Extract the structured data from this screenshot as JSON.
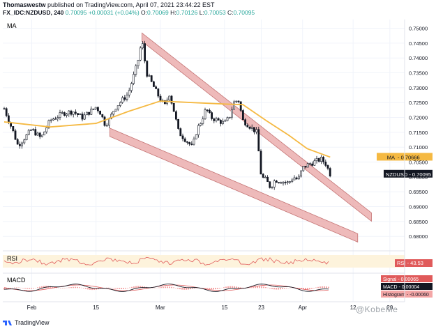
{
  "header": {
    "author": "Thomaswestw",
    "published": "published on TradingView.com, April 07, 2021 23:44:22 EST",
    "symbol": "FX_IDC:NZDUSD, 240",
    "last": "0.70095",
    "change": "+0.00031 (+0.04%)",
    "o_label": "O:",
    "o": "0.70069",
    "h_label": "H:",
    "h": "0.70126",
    "l_label": "L:",
    "l": "0.70053",
    "c_label": "C:",
    "c": "0.70095"
  },
  "colors": {
    "candle": "#131722",
    "ma": "#f5b942",
    "channel_fill": "#e8a3a3",
    "channel_stroke": "#c47373",
    "rsi": "#e05a5a",
    "rsi_band": "#fdf3dc",
    "macd": "#131722",
    "signal": "#e05a5a",
    "histogram": "#f4a6a6",
    "grid": "#f0f3fa",
    "axis_text": "#131722"
  },
  "chart_data": {
    "type": "candlestick",
    "symbol": "NZDUSD",
    "timeframe": "240",
    "ylim": [
      0.677,
      0.752
    ],
    "y_ticks": [
      "0.75000",
      "0.74500",
      "0.74000",
      "0.73500",
      "0.73000",
      "0.72500",
      "0.72000",
      "0.71500",
      "0.71000",
      "0.70500",
      "0.70000",
      "0.69500",
      "0.69000",
      "0.68500",
      "0.68000"
    ],
    "x_ticks": [
      "Feb",
      "15",
      "Mar",
      "15",
      "23",
      "Apr",
      "12",
      "20"
    ],
    "close_path": [
      {
        "date": "2021-01-26",
        "v": 0.723
      },
      {
        "date": "2021-01-28",
        "v": 0.715
      },
      {
        "date": "2021-01-29",
        "v": 0.7105
      },
      {
        "date": "2021-02-01",
        "v": 0.716
      },
      {
        "date": "2021-02-03",
        "v": 0.713
      },
      {
        "date": "2021-02-05",
        "v": 0.719
      },
      {
        "date": "2021-02-08",
        "v": 0.7215
      },
      {
        "date": "2021-02-10",
        "v": 0.722
      },
      {
        "date": "2021-02-12",
        "v": 0.72
      },
      {
        "date": "2021-02-15",
        "v": 0.7235
      },
      {
        "date": "2021-02-16",
        "v": 0.7215
      },
      {
        "date": "2021-02-17",
        "v": 0.7175
      },
      {
        "date": "2021-02-18",
        "v": 0.7195
      },
      {
        "date": "2021-02-19",
        "v": 0.723
      },
      {
        "date": "2021-02-22",
        "v": 0.728
      },
      {
        "date": "2021-02-23",
        "v": 0.733
      },
      {
        "date": "2021-02-24",
        "v": 0.738
      },
      {
        "date": "2021-02-25",
        "v": 0.746
      },
      {
        "date": "2021-02-26",
        "v": 0.735
      },
      {
        "date": "2021-03-01",
        "v": 0.726
      },
      {
        "date": "2021-03-02",
        "v": 0.724
      },
      {
        "date": "2021-03-03",
        "v": 0.728
      },
      {
        "date": "2021-03-04",
        "v": 0.722
      },
      {
        "date": "2021-03-05",
        "v": 0.715
      },
      {
        "date": "2021-03-08",
        "v": 0.71
      },
      {
        "date": "2021-03-09",
        "v": 0.716
      },
      {
        "date": "2021-03-10",
        "v": 0.719
      },
      {
        "date": "2021-03-11",
        "v": 0.723
      },
      {
        "date": "2021-03-12",
        "v": 0.72
      },
      {
        "date": "2021-03-15",
        "v": 0.718
      },
      {
        "date": "2021-03-16",
        "v": 0.72
      },
      {
        "date": "2021-03-17",
        "v": 0.725
      },
      {
        "date": "2021-03-18",
        "v": 0.726
      },
      {
        "date": "2021-03-19",
        "v": 0.719
      },
      {
        "date": "2021-03-22",
        "v": 0.715
      },
      {
        "date": "2021-03-23",
        "v": 0.7
      },
      {
        "date": "2021-03-24",
        "v": 0.699
      },
      {
        "date": "2021-03-25",
        "v": 0.6965
      },
      {
        "date": "2021-03-26",
        "v": 0.699
      },
      {
        "date": "2021-03-29",
        "v": 0.698
      },
      {
        "date": "2021-03-30",
        "v": 0.7
      },
      {
        "date": "2021-03-31",
        "v": 0.699
      },
      {
        "date": "2021-04-01",
        "v": 0.703
      },
      {
        "date": "2021-04-02",
        "v": 0.704
      },
      {
        "date": "2021-04-05",
        "v": 0.706
      },
      {
        "date": "2021-04-06",
        "v": 0.7045
      },
      {
        "date": "2021-04-07",
        "v": 0.70095
      }
    ],
    "ma_path": [
      {
        "date": "2021-01-26",
        "v": 0.7185
      },
      {
        "date": "2021-02-05",
        "v": 0.7168
      },
      {
        "date": "2021-02-15",
        "v": 0.718
      },
      {
        "date": "2021-02-22",
        "v": 0.722
      },
      {
        "date": "2021-03-01",
        "v": 0.7255
      },
      {
        "date": "2021-03-08",
        "v": 0.725
      },
      {
        "date": "2021-03-15",
        "v": 0.7245
      },
      {
        "date": "2021-03-19",
        "v": 0.7243
      },
      {
        "date": "2021-03-24",
        "v": 0.719
      },
      {
        "date": "2021-03-29",
        "v": 0.714
      },
      {
        "date": "2021-04-02",
        "v": 0.7095
      },
      {
        "date": "2021-04-07",
        "v": 0.70666
      }
    ],
    "upper_channel": [
      {
        "date": "2021-02-25",
        "v": 0.747
      },
      {
        "date": "2021-04-16",
        "v": 0.6865
      }
    ],
    "lower_channel": [
      {
        "date": "2021-02-18",
        "v": 0.715
      },
      {
        "date": "2021-04-13",
        "v": 0.6795
      }
    ],
    "ma_value": "0.70666",
    "ma_label": "MA",
    "last_label": "NZDUSD",
    "last_value": "0.70095",
    "pane_label": "MA",
    "rsi": {
      "label": "RSI",
      "value": "43.53"
    },
    "macd": {
      "label": "MACD",
      "signal_label": "Signal",
      "signal": "0.00065",
      "macd_label": "MACD",
      "macd": "0.00004",
      "histogram_label": "Histogram",
      "histogram": "-0.00060"
    }
  },
  "footer": {
    "brand": "TradingView"
  },
  "watermark": "@KobeMe"
}
